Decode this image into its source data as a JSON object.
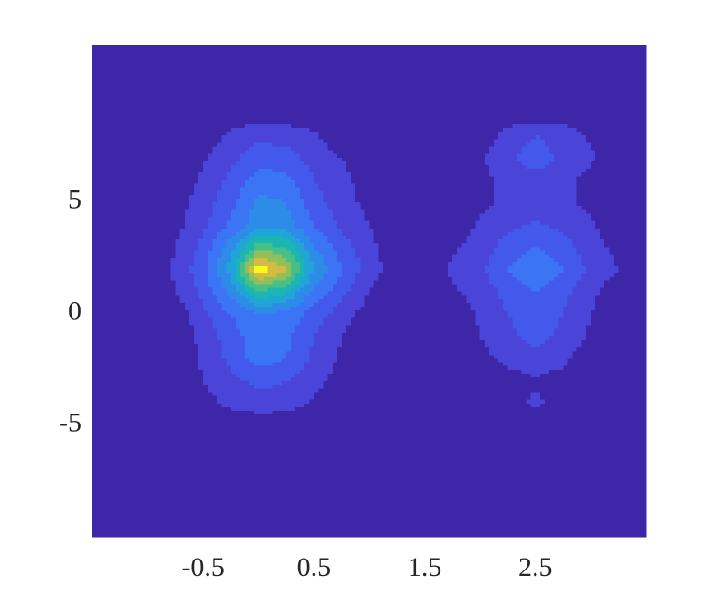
{
  "chart_data": {
    "type": "contour",
    "xlim": [
      -1.5,
      3.5
    ],
    "ylim": [
      -10,
      12
    ],
    "xticks": [
      -0.5,
      0.5,
      1.5,
      2.5
    ],
    "yticks": [
      -5,
      0,
      5
    ],
    "grid": false,
    "levels": [
      0.05,
      0.12,
      0.2,
      0.3,
      0.4,
      0.5,
      0.6,
      0.7,
      0.8,
      0.9
    ],
    "colors": [
      "#3e26a8",
      "#4a44d8",
      "#4359ec",
      "#3b74f4",
      "#2e8ce9",
      "#1fa5d6",
      "#1cb6b2",
      "#48bf86",
      "#90c05a",
      "#d4bb42",
      "#f9fb15"
    ],
    "x": [
      -1.5,
      -1.25,
      -1,
      -0.75,
      -0.5,
      -0.25,
      0,
      0.25,
      0.5,
      0.75,
      1,
      1.25,
      1.5,
      1.75,
      2,
      2.25,
      2.5,
      2.75,
      3,
      3.25,
      3.5
    ],
    "y": [
      -10,
      -9,
      -8,
      -7,
      -6,
      -5,
      -4,
      -3,
      -2,
      -1,
      0,
      1,
      2,
      3,
      4,
      5,
      6,
      7,
      8,
      9,
      10,
      11,
      12
    ],
    "z": [
      [
        0,
        0,
        0,
        0,
        0,
        0,
        0,
        0,
        0,
        0,
        0,
        0,
        0,
        0,
        0,
        0,
        0,
        0,
        0,
        0,
        0
      ],
      [
        0,
        0,
        0,
        0,
        0,
        0,
        0,
        0,
        0,
        0,
        0,
        0,
        0,
        0,
        0,
        0,
        0,
        0,
        0,
        0,
        0
      ],
      [
        0,
        0,
        0,
        0,
        0,
        0,
        0,
        0,
        0,
        0,
        0,
        0,
        0,
        0,
        0,
        0,
        0,
        0,
        0,
        0,
        0
      ],
      [
        0,
        0,
        0,
        0,
        0,
        0,
        0,
        0,
        0,
        0,
        0,
        0,
        0,
        0,
        0,
        0,
        0,
        0,
        0,
        0,
        0
      ],
      [
        0,
        0,
        0,
        0,
        0,
        0,
        0,
        0,
        0,
        0,
        0,
        0,
        0,
        0,
        0,
        0,
        0,
        0,
        0,
        0,
        0
      ],
      [
        0,
        0,
        0,
        0,
        0,
        0,
        0,
        0,
        0,
        0,
        0,
        0,
        0,
        0,
        0,
        0,
        0,
        0,
        0,
        0,
        0
      ],
      [
        0,
        0,
        0,
        0,
        0.02,
        0.07,
        0.09,
        0.08,
        0.04,
        0,
        0,
        0,
        0,
        0,
        0,
        0,
        0.07,
        0,
        0,
        0,
        0
      ],
      [
        0,
        0,
        0,
        0,
        0.05,
        0.1,
        0.14,
        0.12,
        0.07,
        0.02,
        0,
        0,
        0,
        0,
        0,
        0.02,
        0.04,
        0.02,
        0,
        0,
        0
      ],
      [
        0,
        0,
        0,
        0,
        0.06,
        0.14,
        0.24,
        0.2,
        0.1,
        0.04,
        0,
        0,
        0,
        0,
        0.03,
        0.07,
        0.09,
        0.07,
        0,
        0,
        0
      ],
      [
        0,
        0,
        0,
        0,
        0.07,
        0.16,
        0.26,
        0.22,
        0.12,
        0.05,
        0,
        0,
        0,
        0,
        0.05,
        0.1,
        0.15,
        0.1,
        0.04,
        0,
        0
      ],
      [
        0,
        0,
        0,
        0,
        0.1,
        0.2,
        0.3,
        0.27,
        0.16,
        0.08,
        0.02,
        0,
        0,
        0,
        0.06,
        0.12,
        0.17,
        0.12,
        0.05,
        0,
        0
      ],
      [
        0,
        0,
        0,
        0.05,
        0.14,
        0.33,
        0.6,
        0.52,
        0.27,
        0.14,
        0.05,
        0,
        0,
        0.04,
        0.08,
        0.14,
        0.2,
        0.14,
        0.07,
        0,
        0
      ],
      [
        0,
        0,
        0,
        0.06,
        0.17,
        0.45,
        0.98,
        0.82,
        0.4,
        0.2,
        0.08,
        0.02,
        0,
        0.06,
        0.1,
        0.2,
        0.27,
        0.2,
        0.1,
        0.05,
        0
      ],
      [
        0,
        0,
        0,
        0.05,
        0.14,
        0.35,
        0.65,
        0.6,
        0.3,
        0.16,
        0.07,
        0,
        0,
        0.04,
        0.08,
        0.15,
        0.2,
        0.15,
        0.08,
        0.03,
        0
      ],
      [
        0,
        0,
        0,
        0.03,
        0.1,
        0.22,
        0.36,
        0.34,
        0.2,
        0.1,
        0.05,
        0,
        0,
        0,
        0.06,
        0.1,
        0.13,
        0.1,
        0.06,
        0,
        0
      ],
      [
        0,
        0,
        0,
        0.02,
        0.08,
        0.17,
        0.33,
        0.3,
        0.15,
        0.08,
        0.03,
        0,
        0,
        0,
        0.03,
        0.07,
        0.09,
        0.07,
        0.03,
        0,
        0
      ],
      [
        0,
        0,
        0,
        0,
        0.06,
        0.14,
        0.24,
        0.22,
        0.12,
        0.07,
        0.02,
        0,
        0,
        0,
        0.03,
        0.07,
        0.09,
        0.07,
        0.03,
        0,
        0
      ],
      [
        0,
        0,
        0,
        0,
        0.04,
        0.1,
        0.16,
        0.15,
        0.09,
        0.05,
        0,
        0,
        0,
        0,
        0.04,
        0.1,
        0.16,
        0.1,
        0.06,
        0,
        0
      ],
      [
        0,
        0,
        0,
        0,
        0,
        0.07,
        0.1,
        0.09,
        0.06,
        0,
        0,
        0,
        0,
        0,
        0,
        0.08,
        0.12,
        0.09,
        0.04,
        0,
        0
      ],
      [
        0,
        0,
        0,
        0,
        0,
        0,
        0,
        0,
        0,
        0,
        0,
        0,
        0,
        0,
        0,
        0,
        0,
        0,
        0,
        0,
        0
      ],
      [
        0,
        0,
        0,
        0,
        0,
        0,
        0,
        0,
        0,
        0,
        0,
        0,
        0,
        0,
        0,
        0,
        0,
        0,
        0,
        0,
        0
      ],
      [
        0,
        0,
        0,
        0,
        0,
        0,
        0,
        0,
        0,
        0,
        0,
        0,
        0,
        0,
        0,
        0,
        0,
        0,
        0,
        0,
        0
      ],
      [
        0,
        0,
        0,
        0,
        0,
        0,
        0,
        0,
        0,
        0,
        0,
        0,
        0,
        0,
        0,
        0,
        0,
        0,
        0,
        0,
        0
      ]
    ]
  }
}
